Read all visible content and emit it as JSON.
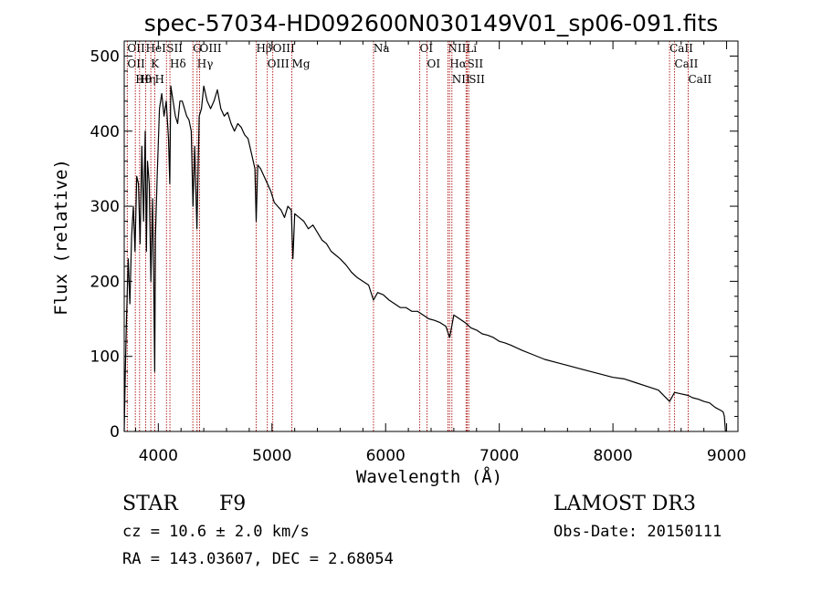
{
  "chart_data": {
    "type": "line",
    "title": "spec-57034-HD092600N030149V01_sp06-091.fits",
    "xlabel": "Wavelength (Å)",
    "ylabel": "Flux (relative)",
    "xlim": [
      3700,
      9100
    ],
    "ylim": [
      0,
      520
    ],
    "x_ticks": [
      4000,
      5000,
      6000,
      7000,
      8000,
      9000
    ],
    "y_ticks": [
      0,
      100,
      200,
      300,
      400,
      500
    ],
    "line_color": "#000000",
    "marker_color": "#b22222",
    "series": [
      {
        "name": "flux",
        "x": [
          3700,
          3710,
          3720,
          3735,
          3750,
          3765,
          3780,
          3795,
          3810,
          3825,
          3840,
          3855,
          3870,
          3885,
          3895,
          3905,
          3920,
          3935,
          3950,
          3960,
          3968,
          3975,
          3990,
          4010,
          4030,
          4050,
          4070,
          4090,
          4101,
          4110,
          4130,
          4150,
          4170,
          4190,
          4210,
          4230,
          4250,
          4270,
          4290,
          4305,
          4320,
          4340,
          4360,
          4380,
          4400,
          4430,
          4460,
          4490,
          4520,
          4550,
          4580,
          4610,
          4640,
          4670,
          4700,
          4730,
          4760,
          4790,
          4820,
          4850,
          4861,
          4875,
          4900,
          4930,
          4960,
          4990,
          5020,
          5050,
          5080,
          5110,
          5140,
          5170,
          5184,
          5200,
          5240,
          5280,
          5320,
          5360,
          5400,
          5440,
          5480,
          5520,
          5560,
          5600,
          5650,
          5700,
          5750,
          5800,
          5850,
          5893,
          5930,
          5980,
          6030,
          6080,
          6130,
          6180,
          6230,
          6280,
          6330,
          6380,
          6430,
          6480,
          6530,
          6563,
          6600,
          6650,
          6700,
          6750,
          6800,
          6850,
          6900,
          6950,
          7000,
          7050,
          7100,
          7200,
          7300,
          7400,
          7500,
          7600,
          7700,
          7800,
          7900,
          8000,
          8100,
          8200,
          8300,
          8400,
          8498,
          8542,
          8600,
          8662,
          8700,
          8750,
          8800,
          8850,
          8900,
          8950,
          8970,
          8980,
          8990
        ],
        "values": [
          0,
          80,
          150,
          230,
          170,
          260,
          300,
          240,
          340,
          330,
          250,
          380,
          280,
          400,
          240,
          360,
          330,
          200,
          310,
          190,
          80,
          260,
          340,
          430,
          450,
          420,
          440,
          390,
          330,
          460,
          440,
          420,
          410,
          440,
          440,
          430,
          420,
          415,
          400,
          300,
          380,
          270,
          420,
          430,
          460,
          440,
          430,
          440,
          455,
          430,
          420,
          425,
          410,
          400,
          410,
          405,
          395,
          390,
          370,
          350,
          280,
          355,
          350,
          340,
          330,
          320,
          305,
          300,
          295,
          285,
          300,
          295,
          230,
          290,
          285,
          280,
          270,
          275,
          265,
          255,
          250,
          240,
          235,
          230,
          222,
          212,
          205,
          200,
          195,
          175,
          185,
          182,
          175,
          170,
          165,
          165,
          160,
          160,
          155,
          150,
          148,
          145,
          140,
          125,
          155,
          150,
          145,
          138,
          135,
          130,
          128,
          125,
          120,
          118,
          115,
          108,
          102,
          96,
          92,
          88,
          84,
          80,
          76,
          72,
          70,
          65,
          60,
          55,
          40,
          52,
          50,
          48,
          45,
          43,
          40,
          38,
          32,
          28,
          26,
          20,
          0
        ]
      }
    ],
    "lines": [
      {
        "x": 3727,
        "labels": [
          "OII",
          "OII"
        ]
      },
      {
        "x": 3798,
        "labels": [
          "Hθ"
        ]
      },
      {
        "x": 3835,
        "labels": [
          "Hη"
        ]
      },
      {
        "x": 3889,
        "labels": [
          "HeI"
        ]
      },
      {
        "x": 3934,
        "labels": [
          "K"
        ]
      },
      {
        "x": 3969,
        "labels": [
          "H"
        ]
      },
      {
        "x": 4072,
        "labels": [
          "SII"
        ]
      },
      {
        "x": 4102,
        "labels": [
          "Hδ"
        ]
      },
      {
        "x": 4304,
        "labels": [
          "G"
        ]
      },
      {
        "x": 4341,
        "labels": [
          "Hγ"
        ]
      },
      {
        "x": 4363,
        "labels": [
          "OIII"
        ]
      },
      {
        "x": 4861,
        "labels": [
          "Hβ"
        ]
      },
      {
        "x": 4959,
        "labels": [
          "OIII"
        ]
      },
      {
        "x": 5007,
        "labels": [
          "OIII"
        ]
      },
      {
        "x": 5175,
        "labels": [
          "Mg"
        ]
      },
      {
        "x": 5893,
        "labels": [
          "Na"
        ]
      },
      {
        "x": 6300,
        "labels": [
          "OI"
        ]
      },
      {
        "x": 6364,
        "labels": [
          "OI"
        ]
      },
      {
        "x": 6548,
        "labels": [
          "NII"
        ]
      },
      {
        "x": 6563,
        "labels": [
          "Hα"
        ]
      },
      {
        "x": 6583,
        "labels": [
          "NII"
        ]
      },
      {
        "x": 6708,
        "labels": [
          "Li"
        ]
      },
      {
        "x": 6717,
        "labels": [
          "SII"
        ]
      },
      {
        "x": 6731,
        "labels": [
          "SII"
        ]
      },
      {
        "x": 8498,
        "labels": [
          "CaII"
        ]
      },
      {
        "x": 8542,
        "labels": [
          "CaII"
        ]
      },
      {
        "x": 8662,
        "labels": [
          "CaII"
        ]
      }
    ]
  },
  "info": {
    "class_label": "STAR",
    "subclass": "F9",
    "survey": "LAMOST DR3",
    "cz_text": "cz = 10.6 ± 2.0 km/s",
    "obs_date": "Obs-Date: 20150111",
    "radec": "RA = 143.03607, DEC =    2.68054"
  }
}
